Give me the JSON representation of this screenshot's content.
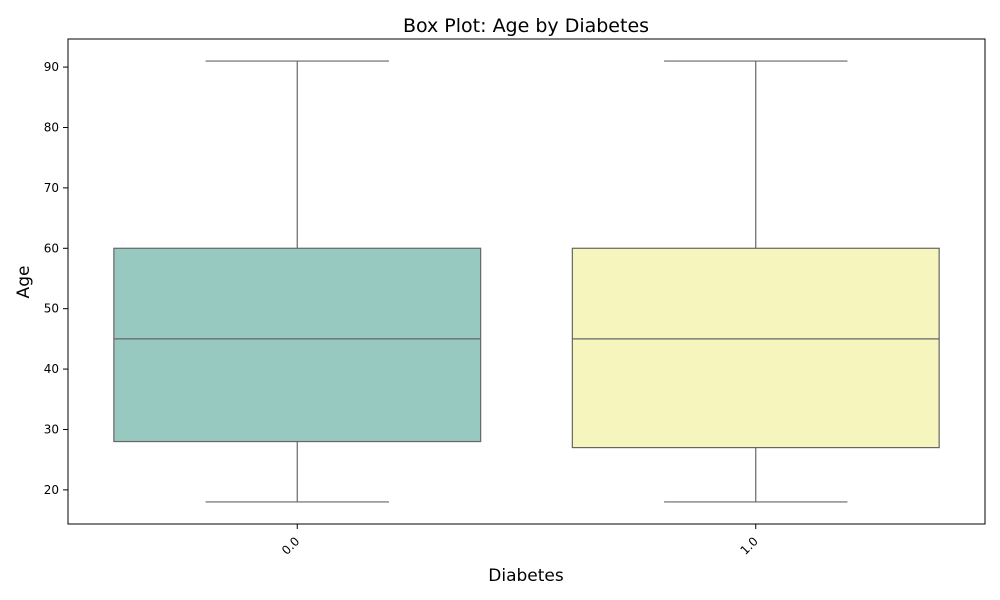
{
  "chart_data": {
    "type": "box",
    "title": "Box Plot: Age by Diabetes",
    "xlabel": "Diabetes",
    "ylabel": "Age",
    "ylim": [
      14.35,
      94.65
    ],
    "yticks": [
      20,
      30,
      40,
      50,
      60,
      70,
      80,
      90
    ],
    "categories": [
      "0.0",
      "1.0"
    ],
    "boxes": [
      {
        "category": "0.0",
        "min": 18,
        "q1": 28,
        "median": 45,
        "q3": 60,
        "max": 91,
        "color": "#98c9c0"
      },
      {
        "category": "1.0",
        "min": 18,
        "q1": 27,
        "median": 45,
        "q3": 60,
        "max": 91,
        "color": "#f5f5bd"
      }
    ],
    "line_color": "#666666",
    "grid": false,
    "legend": "none"
  }
}
